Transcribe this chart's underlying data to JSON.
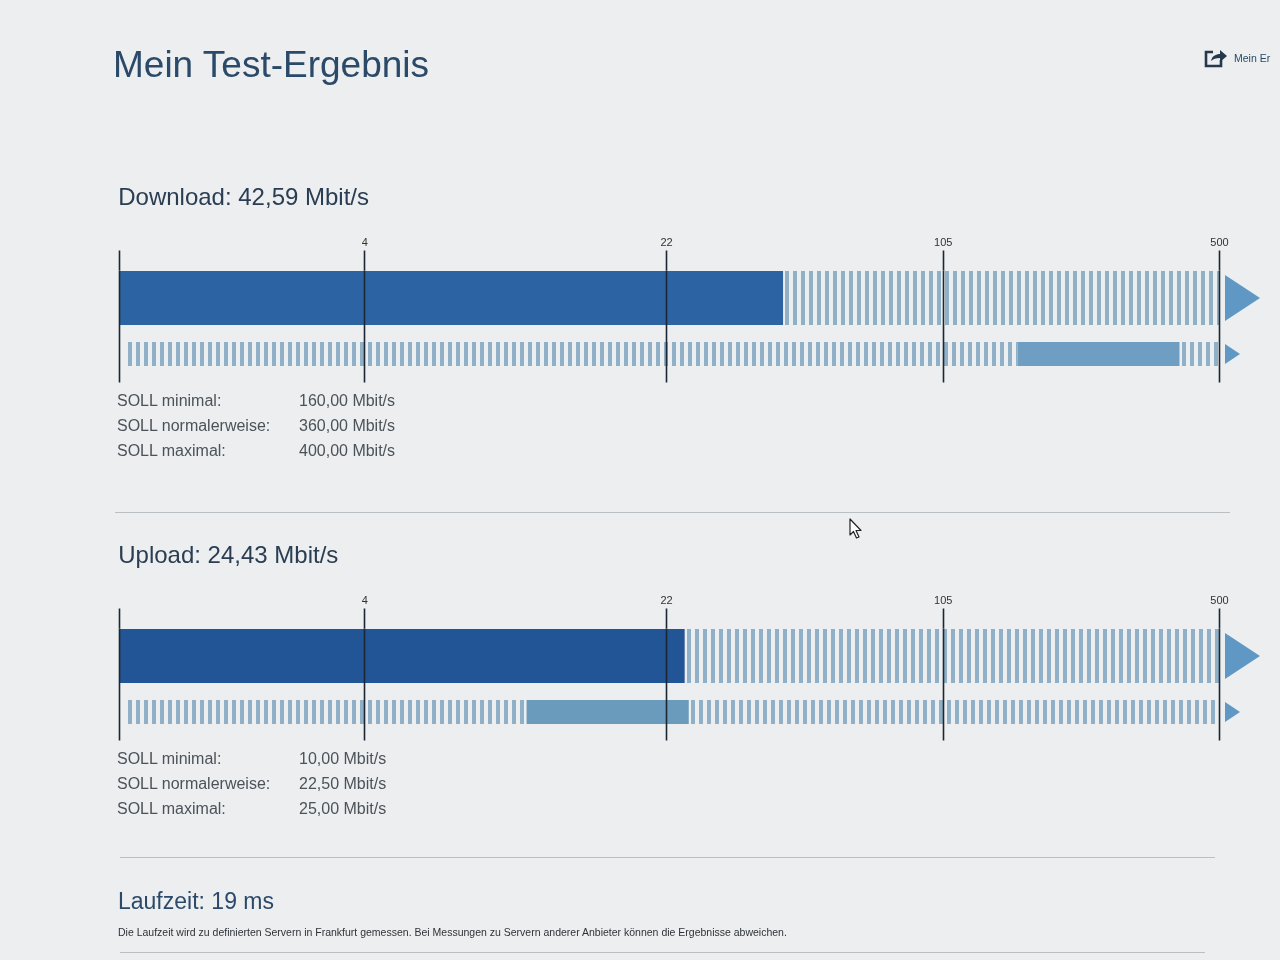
{
  "chart_data": [
    {
      "type": "other",
      "title": "Mein Test-Ergebnis",
      "annotations": [
        "Mein Er"
      ]
    },
    {
      "type": "bar",
      "orientation": "horizontal",
      "title": "Download: 42,59 Mbit/s",
      "categories": [
        null,
        null
      ],
      "values": [
        42.59,
        240
      ],
      "base": [
        null,
        160
      ],
      "colors": [
        "#2c64a3",
        "#6e9ec2"
      ],
      "xlim": [
        1,
        500
      ],
      "xticks": [
        {
          "value": 1,
          "label": null
        },
        4,
        22,
        105,
        500
      ],
      "log": "x",
      "grid": "x",
      "annotations": [
        "SOLL minimal:",
        "160,00 Mbit/s",
        "SOLL normalerweise:",
        "360,00 Mbit/s",
        "SOLL maximal:",
        "400,00 Mbit/s"
      ]
    },
    {
      "type": "bar",
      "orientation": "horizontal",
      "title": "Upload: 24,43 Mbit/s",
      "categories": [
        null,
        null
      ],
      "values": [
        24.43,
        15
      ],
      "base": [
        null,
        10
      ],
      "colors": [
        "#225595",
        "#6a9bbd"
      ],
      "xlim": [
        1,
        500
      ],
      "xticks": [
        {
          "value": 1,
          "label": null
        },
        4,
        22,
        105,
        500
      ],
      "log": "x",
      "grid": "x",
      "annotations": [
        "SOLL minimal:",
        "10,00 Mbit/s",
        "SOLL normalerweise:",
        "22,50 Mbit/s",
        "SOLL maximal:",
        "25,00 Mbit/s"
      ]
    },
    {
      "type": "other",
      "title": "Laufzeit: 19 ms",
      "annotations": [
        "Die Laufzeit wird zu definierten Servern in Frankfurt gemessen. Bei Messungen zu Servern anderer Anbieter können die Ergebnisse abweichen."
      ]
    }
  ]
}
